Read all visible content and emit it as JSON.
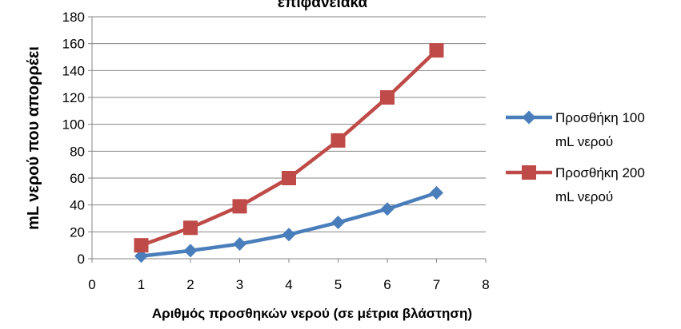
{
  "chart_data": {
    "type": "line",
    "title": "επιφανειακά",
    "xlabel": "Αριθμός προσθηκών νερού (σε μέτρια βλάστηση)",
    "ylabel": "mL νερού που απορρέει",
    "xlim": [
      0,
      8
    ],
    "ylim": [
      0,
      180
    ],
    "xticks": [
      "0",
      "1",
      "2",
      "3",
      "4",
      "5",
      "6",
      "7",
      "8"
    ],
    "yticks": [
      "0",
      "20",
      "40",
      "60",
      "80",
      "100",
      "120",
      "140",
      "160",
      "180"
    ],
    "grid": "horizontal",
    "legend_position": "right",
    "x": [
      1,
      2,
      3,
      4,
      5,
      6,
      7
    ],
    "series": [
      {
        "name_lines": [
          "Προσθήκη 100",
          "mL νερού"
        ],
        "color": "#4a7ebb",
        "marker": "diamond",
        "values": [
          2,
          6,
          11,
          18,
          27,
          37,
          49
        ]
      },
      {
        "name_lines": [
          "Προσθήκη 200",
          "mL νερού"
        ],
        "color": "#be4b48",
        "marker": "square",
        "values": [
          10,
          23,
          39,
          60,
          88,
          120,
          155
        ]
      }
    ]
  }
}
